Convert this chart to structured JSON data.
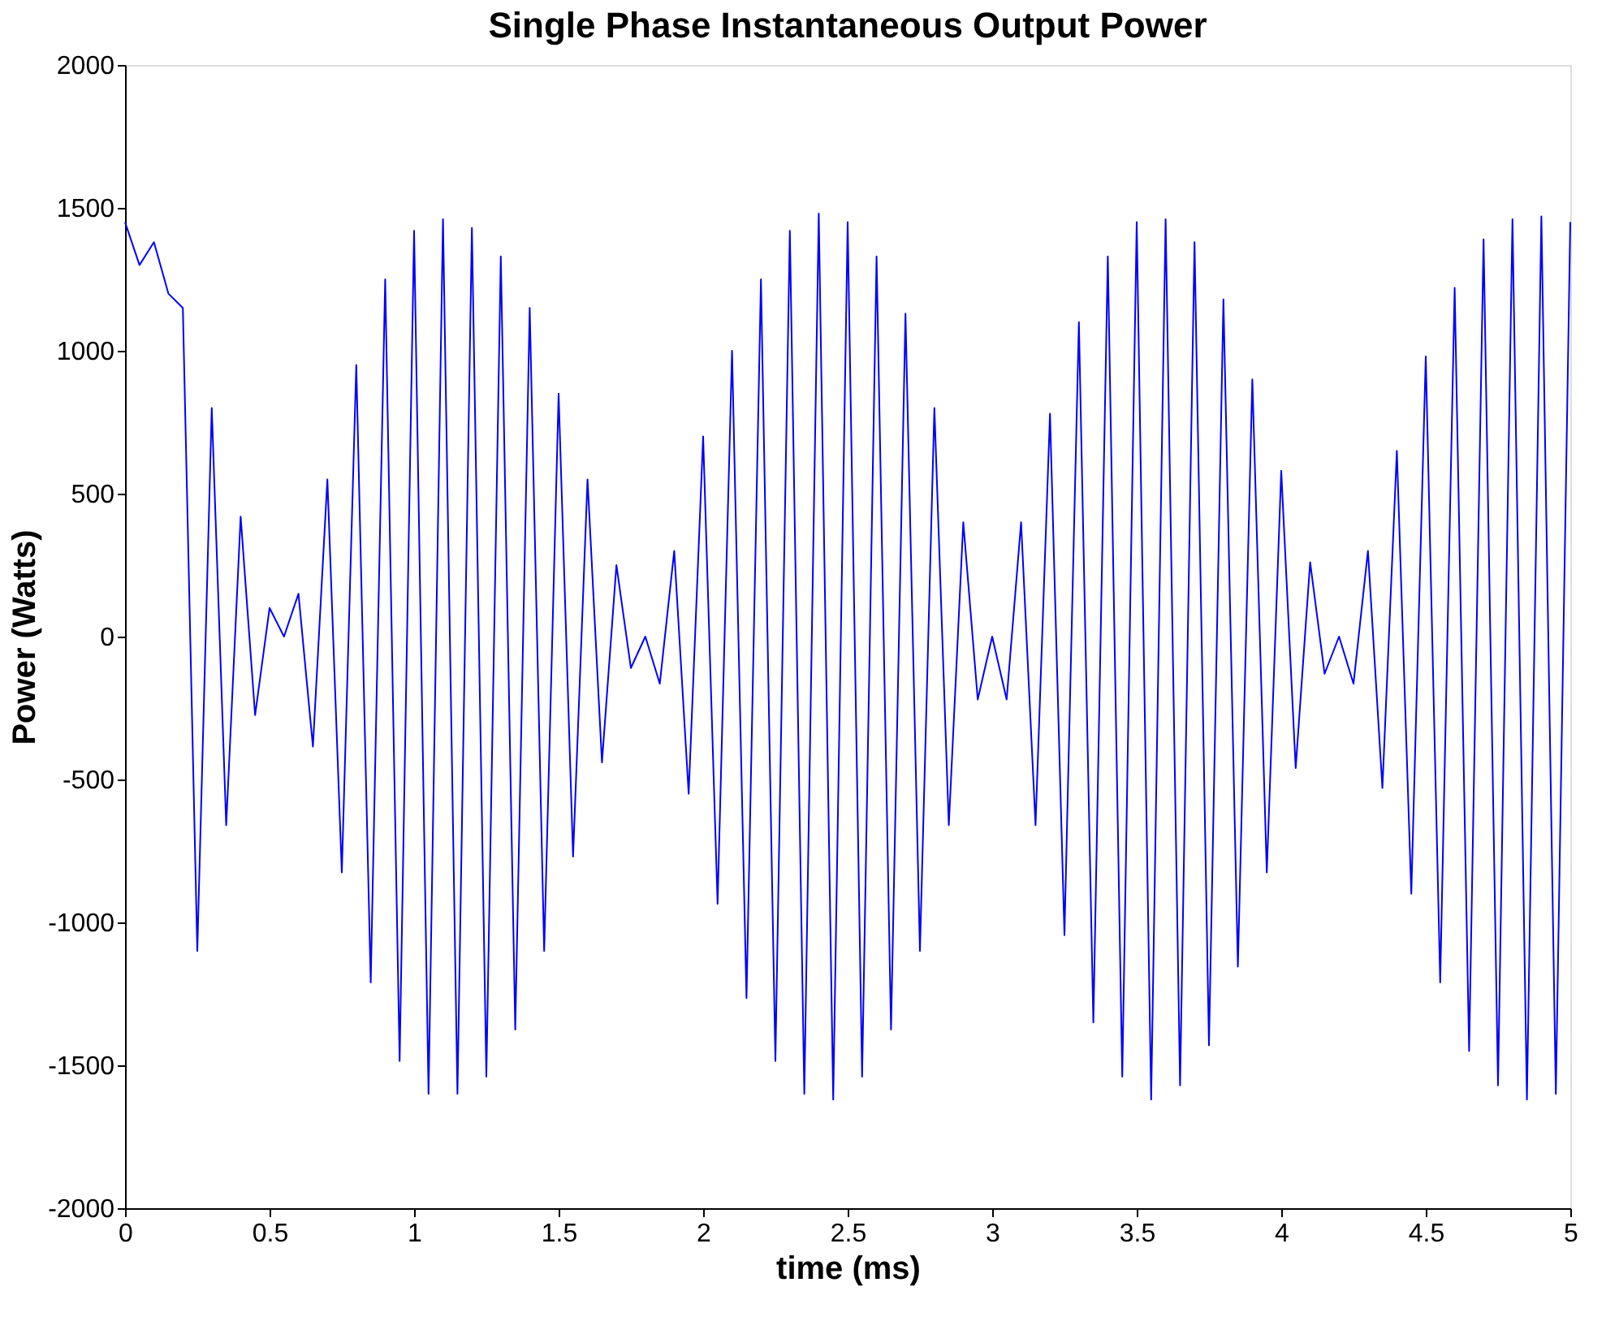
{
  "chart_data": {
    "type": "line",
    "title": "Single Phase Instantaneous Output Power",
    "xlabel": "time (ms)",
    "ylabel": "Power (Watts)",
    "x": [
      0,
      0.05,
      0.1,
      0.15,
      0.2,
      0.25,
      0.3,
      0.35,
      0.4,
      0.45,
      0.5,
      0.55,
      0.6,
      0.65,
      0.7,
      0.75,
      0.8,
      0.85,
      0.9,
      0.95,
      1.0,
      1.05,
      1.1,
      1.15,
      1.2,
      1.25,
      1.3,
      1.35,
      1.4,
      1.45,
      1.5,
      1.55,
      1.6,
      1.65,
      1.7,
      1.75,
      1.8,
      1.85,
      1.9,
      1.95,
      2.0,
      2.05,
      2.1,
      2.15,
      2.2,
      2.25,
      2.3,
      2.35,
      2.4,
      2.45,
      2.5,
      2.55,
      2.6,
      2.65,
      2.7,
      2.75,
      2.8,
      2.85,
      2.9,
      2.95,
      3.0,
      3.05,
      3.1,
      3.15,
      3.2,
      3.25,
      3.3,
      3.35,
      3.4,
      3.45,
      3.5,
      3.55,
      3.6,
      3.65,
      3.7,
      3.75,
      3.8,
      3.85,
      3.9,
      3.95,
      4.0,
      4.05,
      4.1,
      4.15,
      4.2,
      4.25,
      4.3,
      4.35,
      4.4,
      4.45,
      4.5,
      4.55,
      4.6,
      4.65,
      4.7,
      4.75,
      4.8,
      4.85,
      4.9,
      4.95,
      5.0
    ],
    "series": [
      {
        "color": "#0000ff",
        "values": [
          1450,
          1300,
          1380,
          1200,
          1150,
          -1100,
          800,
          -660,
          420,
          -275,
          100,
          0,
          150,
          -385,
          550,
          -825,
          950,
          -1210,
          1250,
          -1485,
          1420,
          -1600,
          1460,
          -1600,
          1430,
          -1540,
          1330,
          -1375,
          1150,
          -1100,
          850,
          -770,
          550,
          -440,
          250,
          -110,
          0,
          -165,
          300,
          -550,
          700,
          -935,
          1000,
          -1265,
          1250,
          -1485,
          1420,
          -1600,
          1480,
          -1620,
          1450,
          -1540,
          1330,
          -1375,
          1130,
          -1100,
          800,
          -660,
          400,
          -220,
          0,
          -220,
          400,
          -660,
          780,
          -1045,
          1100,
          -1350,
          1330,
          -1540,
          1450,
          -1620,
          1460,
          -1570,
          1380,
          -1430,
          1180,
          -1155,
          900,
          -825,
          580,
          -460,
          260,
          -130,
          0,
          -165,
          300,
          -530,
          650,
          -900,
          980,
          -1210,
          1220,
          -1450,
          1390,
          -1570,
          1460,
          -1620,
          1470,
          -1600,
          1450
        ]
      }
    ],
    "xlim": [
      0,
      5
    ],
    "xticks": [
      0,
      0.5,
      1,
      1.5,
      2,
      2.5,
      3,
      3.5,
      4,
      4.5,
      5
    ],
    "ylim": [
      -2000,
      2000
    ],
    "yticks": [
      -2000,
      -1500,
      -1000,
      -500,
      0,
      500,
      1000,
      1500,
      2000
    ],
    "grid": false,
    "marker": "none",
    "line_style": "solid"
  }
}
